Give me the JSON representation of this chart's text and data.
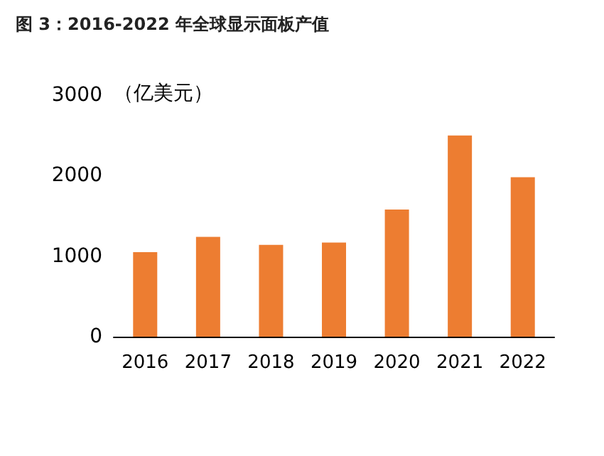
{
  "chart_data": {
    "type": "bar",
    "title": "图 3：2016-2022 年全球显示面板产值",
    "ylabel": "（亿美元）",
    "categories": [
      "2016",
      "2017",
      "2018",
      "2019",
      "2020",
      "2021",
      "2022"
    ],
    "values": [
      1050,
      1240,
      1140,
      1170,
      1580,
      2500,
      1980
    ],
    "color": "#ed7d31",
    "ylim": [
      0,
      3000
    ],
    "yticks": [
      0,
      1000,
      2000,
      3000
    ],
    "grid": false
  }
}
